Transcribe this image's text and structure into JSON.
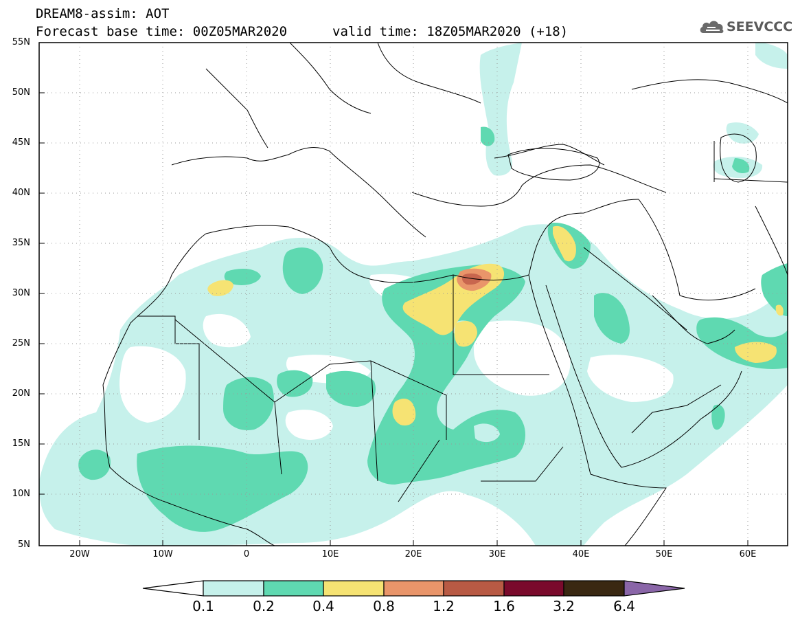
{
  "title": {
    "line1": "DREAM8-assim: AOT",
    "base_time": "Forecast base time: 00Z05MAR2020",
    "valid_time": "valid time: 18Z05MAR2020 (+18)"
  },
  "logo": {
    "text": "SEEVCCC",
    "icon": "cloud-logo-icon"
  },
  "map": {
    "latitude_labels": [
      "55N",
      "50N",
      "45N",
      "40N",
      "35N",
      "30N",
      "25N",
      "20N",
      "15N",
      "10N",
      "5N"
    ],
    "longitude_labels": [
      "20W",
      "10W",
      "0",
      "10E",
      "20E",
      "30E",
      "40E",
      "50E",
      "60E"
    ],
    "grid": "dotted",
    "frame_color": "#000000",
    "land_border_color": "#000000"
  },
  "colorbar": {
    "labels": [
      "0.1",
      "0.2",
      "0.4",
      "0.8",
      "1.2",
      "1.6",
      "3.2",
      "6.4"
    ],
    "colors": [
      "#ffffff",
      "#c6f1eb",
      "#5fd9b1",
      "#f6e373",
      "#e9956a",
      "#b85a44",
      "#7a0a2c",
      "#3a2812",
      "#8a66a8"
    ]
  },
  "aot_colors": {
    "c1": "#c6f1eb",
    "c2": "#5fd9b1",
    "c3": "#f6e373",
    "c4": "#e9956a",
    "c5": "#c8664e"
  }
}
